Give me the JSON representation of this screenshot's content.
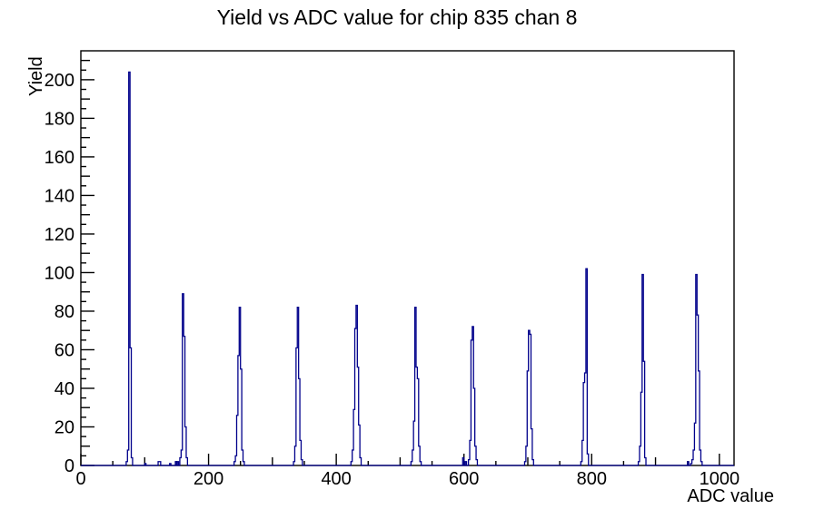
{
  "window": {
    "kind": "root-canvas-plot"
  },
  "colors": {
    "histogram_line": "#00008b",
    "axis_line": "#000000",
    "background": "#ffffff",
    "text": "#000000"
  },
  "chart_data": {
    "type": "bar",
    "title": "Yield vs ADC value for chip 835 chan 8",
    "xlabel": "ADC value",
    "ylabel": "Yield",
    "xlim": [
      0,
      1023
    ],
    "ylim": [
      0,
      215
    ],
    "grid": "off",
    "legend": "none",
    "bin_width": 2,
    "x_ticks_major": [
      0,
      200,
      400,
      600,
      800,
      1000
    ],
    "x_ticks_medium": [
      100,
      300,
      500,
      700,
      900
    ],
    "x_ticks_minor": [
      50,
      150,
      250,
      350,
      450,
      550,
      650,
      750,
      850,
      950
    ],
    "y_ticks_major": [
      0,
      20,
      40,
      60,
      80,
      100,
      120,
      140,
      160,
      180,
      200
    ],
    "y_ticks_medium": [
      10,
      30,
      50,
      70,
      90,
      110,
      130,
      150,
      170,
      190,
      210
    ],
    "y_ticks_minor": [
      5,
      15,
      25,
      35,
      45,
      55,
      65,
      75,
      85,
      95,
      105,
      115,
      125,
      135,
      145,
      155,
      165,
      175,
      185,
      195,
      205
    ],
    "peak_centers_adc": [
      76,
      160,
      249,
      340,
      432,
      524,
      614,
      702,
      792,
      880,
      964
    ],
    "peak_max_yields": [
      204,
      89,
      82,
      82,
      83,
      82,
      72,
      70,
      102,
      99,
      99
    ],
    "bars": [
      [
        72,
        2
      ],
      [
        74,
        8
      ],
      [
        76,
        204
      ],
      [
        78,
        61
      ],
      [
        80,
        4
      ],
      [
        101,
        1
      ],
      [
        122,
        2
      ],
      [
        124,
        2
      ],
      [
        140,
        1
      ],
      [
        149,
        2
      ],
      [
        152,
        2
      ],
      [
        156,
        4
      ],
      [
        158,
        8
      ],
      [
        160,
        89
      ],
      [
        162,
        67
      ],
      [
        164,
        20
      ],
      [
        166,
        4
      ],
      [
        241,
        2
      ],
      [
        243,
        5
      ],
      [
        245,
        26
      ],
      [
        247,
        57
      ],
      [
        249,
        82
      ],
      [
        251,
        50
      ],
      [
        253,
        8
      ],
      [
        255,
        2
      ],
      [
        334,
        2
      ],
      [
        336,
        10
      ],
      [
        338,
        61
      ],
      [
        340,
        82
      ],
      [
        342,
        45
      ],
      [
        344,
        13
      ],
      [
        346,
        3
      ],
      [
        424,
        2
      ],
      [
        426,
        8
      ],
      [
        428,
        29
      ],
      [
        430,
        71
      ],
      [
        432,
        83
      ],
      [
        434,
        51
      ],
      [
        436,
        21
      ],
      [
        438,
        4
      ],
      [
        518,
        2
      ],
      [
        520,
        8
      ],
      [
        522,
        23
      ],
      [
        524,
        82
      ],
      [
        526,
        51
      ],
      [
        528,
        45
      ],
      [
        530,
        10
      ],
      [
        532,
        2
      ],
      [
        599,
        4
      ],
      [
        603,
        2
      ],
      [
        608,
        3
      ],
      [
        610,
        13
      ],
      [
        612,
        65
      ],
      [
        614,
        72
      ],
      [
        616,
        40
      ],
      [
        618,
        10
      ],
      [
        620,
        3
      ],
      [
        696,
        2
      ],
      [
        698,
        10
      ],
      [
        700,
        49
      ],
      [
        702,
        70
      ],
      [
        704,
        68
      ],
      [
        706,
        19
      ],
      [
        708,
        3
      ],
      [
        784,
        2
      ],
      [
        786,
        13
      ],
      [
        788,
        43
      ],
      [
        790,
        48
      ],
      [
        792,
        102
      ],
      [
        794,
        6
      ],
      [
        874,
        2
      ],
      [
        876,
        10
      ],
      [
        878,
        38
      ],
      [
        880,
        99
      ],
      [
        882,
        54
      ],
      [
        884,
        4
      ],
      [
        951,
        2
      ],
      [
        956,
        1
      ],
      [
        958,
        3
      ],
      [
        960,
        8
      ],
      [
        962,
        22
      ],
      [
        964,
        99
      ],
      [
        966,
        78
      ],
      [
        968,
        49
      ],
      [
        970,
        8
      ],
      [
        972,
        2
      ]
    ]
  }
}
